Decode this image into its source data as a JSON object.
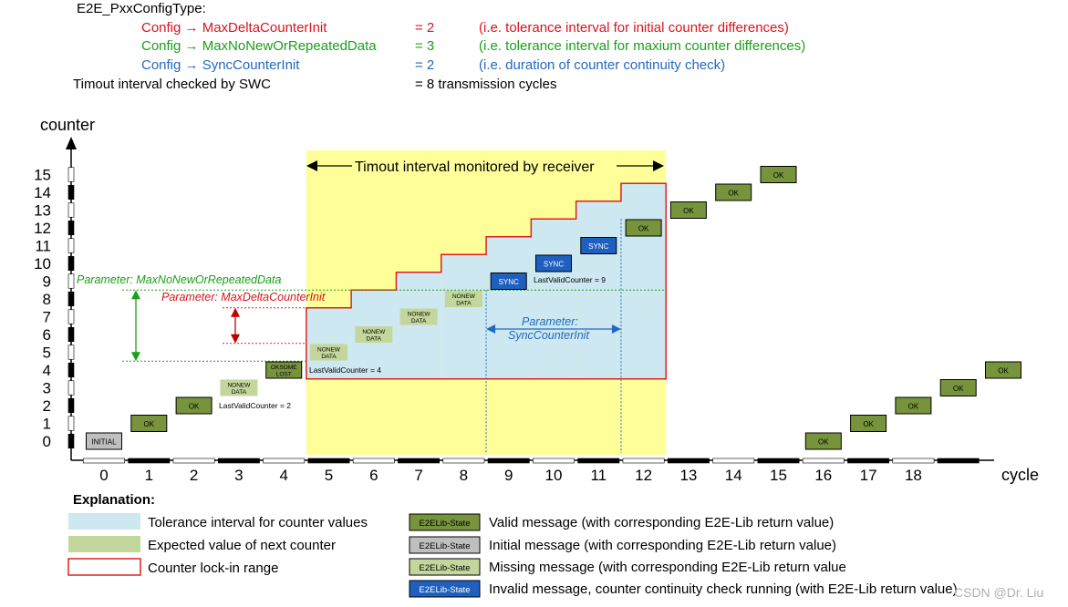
{
  "header": {
    "type_name": "E2E_PxxConfigType:",
    "config_lines": [
      {
        "name": "Config → MaxDeltaCounterInit",
        "value": "= 2",
        "desc": "(i.e. tolerance interval for initial counter differences)",
        "color": "#d9141d"
      },
      {
        "name": "Config → MaxNoNewOrRepeatedData",
        "value": "= 3",
        "desc": "(i.e. tolerance interval for maxium counter differences)",
        "color": "#19a019"
      },
      {
        "name": "Config → SyncCounterInit",
        "value": "= 2",
        "desc": "(i.e. duration of counter continuity check)",
        "color": "#2469c0"
      }
    ],
    "timeout_line": {
      "name": "Timout interval checked by SWC",
      "value": "= 8 transmission cycles"
    }
  },
  "axes": {
    "y_label": "counter",
    "x_label": "cycle",
    "y_ticks": [
      "0",
      "1",
      "2",
      "3",
      "4",
      "5",
      "6",
      "7",
      "8",
      "9",
      "10",
      "11",
      "12",
      "13",
      "14",
      "15"
    ],
    "x_ticks": [
      "0",
      "1",
      "2",
      "3",
      "4",
      "5",
      "6",
      "7",
      "8",
      "9",
      "10",
      "11",
      "12",
      "13",
      "14",
      "15",
      "16",
      "17",
      "18"
    ]
  },
  "timeout_interval": {
    "label": "Timout interval monitored by receiver",
    "from_cycle": 4.5,
    "to_cycle": 12.5
  },
  "parameters": {
    "max_no_new": "Parameter: MaxNoNewOrRepeatedData",
    "max_delta": "Parameter: MaxDeltaCounterInit",
    "sync_line1": "Parameter:",
    "sync_line2": "SyncCounterInit"
  },
  "notes": [
    {
      "text": "LastValidCounter = 2",
      "cycle": 3,
      "counter": 2
    },
    {
      "text": "LastValidCounter = 4",
      "cycle": 5,
      "counter": 4
    },
    {
      "text": "LastValidCounter = 9",
      "cycle": 10,
      "counter": 9
    }
  ],
  "messages": [
    {
      "cycle": 0,
      "counter": 0,
      "state": "initial",
      "label": "INITIAL"
    },
    {
      "cycle": 1,
      "counter": 1,
      "state": "valid",
      "label": "OK"
    },
    {
      "cycle": 2,
      "counter": 2,
      "state": "valid",
      "label": "OK"
    },
    {
      "cycle": 3,
      "counter": 3,
      "state": "missing",
      "label": "NONEW DATA"
    },
    {
      "cycle": 4,
      "counter": 4,
      "state": "valid",
      "label": "OKSOME LOST"
    },
    {
      "cycle": 5,
      "counter": 5,
      "state": "missing",
      "label": "NONEW DATA"
    },
    {
      "cycle": 6,
      "counter": 6,
      "state": "missing",
      "label": "NONEW DATA"
    },
    {
      "cycle": 7,
      "counter": 7,
      "state": "missing",
      "label": "NONEW DATA"
    },
    {
      "cycle": 8,
      "counter": 8,
      "state": "missing",
      "label": "NONEW DATA"
    },
    {
      "cycle": 9,
      "counter": 9,
      "state": "sync",
      "label": "SYNC"
    },
    {
      "cycle": 10,
      "counter": 10,
      "state": "sync",
      "label": "SYNC"
    },
    {
      "cycle": 11,
      "counter": 11,
      "state": "sync",
      "label": "SYNC"
    },
    {
      "cycle": 12,
      "counter": 12,
      "state": "valid",
      "label": "OK"
    },
    {
      "cycle": 13,
      "counter": 13,
      "state": "valid",
      "label": "OK"
    },
    {
      "cycle": 14,
      "counter": 14,
      "state": "valid",
      "label": "OK"
    },
    {
      "cycle": 15,
      "counter": 15,
      "state": "valid",
      "label": "OK"
    },
    {
      "cycle": 16,
      "counter": 0,
      "state": "valid",
      "label": "OK"
    },
    {
      "cycle": 17,
      "counter": 1,
      "state": "valid",
      "label": "OK"
    },
    {
      "cycle": 18,
      "counter": 2,
      "state": "valid",
      "label": "OK"
    },
    {
      "cycle": 19,
      "counter": 3,
      "state": "valid",
      "label": "OK"
    },
    {
      "cycle": 20,
      "counter": 4,
      "state": "valid",
      "label": "OK"
    }
  ],
  "tolerance_steps": [
    {
      "cycle": 5,
      "top": 7
    },
    {
      "cycle": 6,
      "top": 8
    },
    {
      "cycle": 7,
      "top": 9
    },
    {
      "cycle": 8,
      "top": 10
    },
    {
      "cycle": 9,
      "top": 11
    },
    {
      "cycle": 10,
      "top": 12
    },
    {
      "cycle": 11,
      "top": 13
    },
    {
      "cycle": 12,
      "top": 14
    }
  ],
  "colors": {
    "valid": "#77933c",
    "initial": "#bfbfbf",
    "missing": "#c3d69b",
    "sync": "#1f5fbf",
    "tolerance": "#cde8f0",
    "timeout": "#ffff99",
    "lockin": "#e02020"
  },
  "explanation": {
    "title": "Explanation:",
    "left": [
      {
        "label": "Tolerance interval for counter values",
        "swatch": "tolerance"
      },
      {
        "label": "Expected value of next counter",
        "swatch": "missing"
      },
      {
        "label": "Counter lock-in range",
        "swatch": "lockin"
      }
    ],
    "right": [
      {
        "badge": "E2ELib-State",
        "state": "valid",
        "label": "Valid message (with corresponding E2E-Lib return value)"
      },
      {
        "badge": "E2ELib-State",
        "state": "initial",
        "label": "Initial message (with corresponding E2E-Lib return value)"
      },
      {
        "badge": "E2ELib-State",
        "state": "missing",
        "label": "Missing message (with corresponding E2E-Lib return value"
      },
      {
        "badge": "E2ELib-State",
        "state": "sync",
        "label": "Invalid message, counter continuity check running (with E2E-Lib return value)"
      }
    ]
  },
  "watermark": "CSDN @Dr. Liu"
}
